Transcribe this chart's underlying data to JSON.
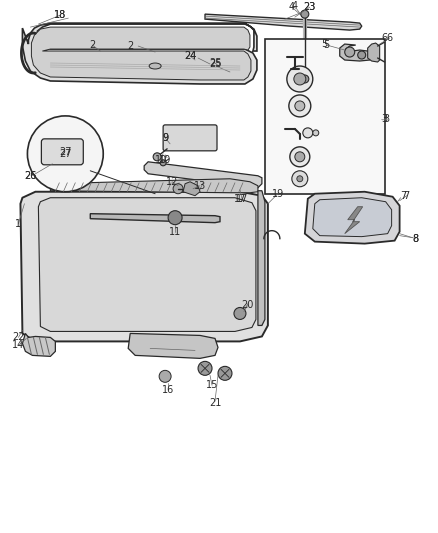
{
  "bg_color": "#ffffff",
  "fig_width": 4.38,
  "fig_height": 5.33,
  "dpi": 100,
  "dark": "#2a2a2a",
  "gray": "#666666",
  "light_gray": "#cccccc",
  "mid_gray": "#999999"
}
